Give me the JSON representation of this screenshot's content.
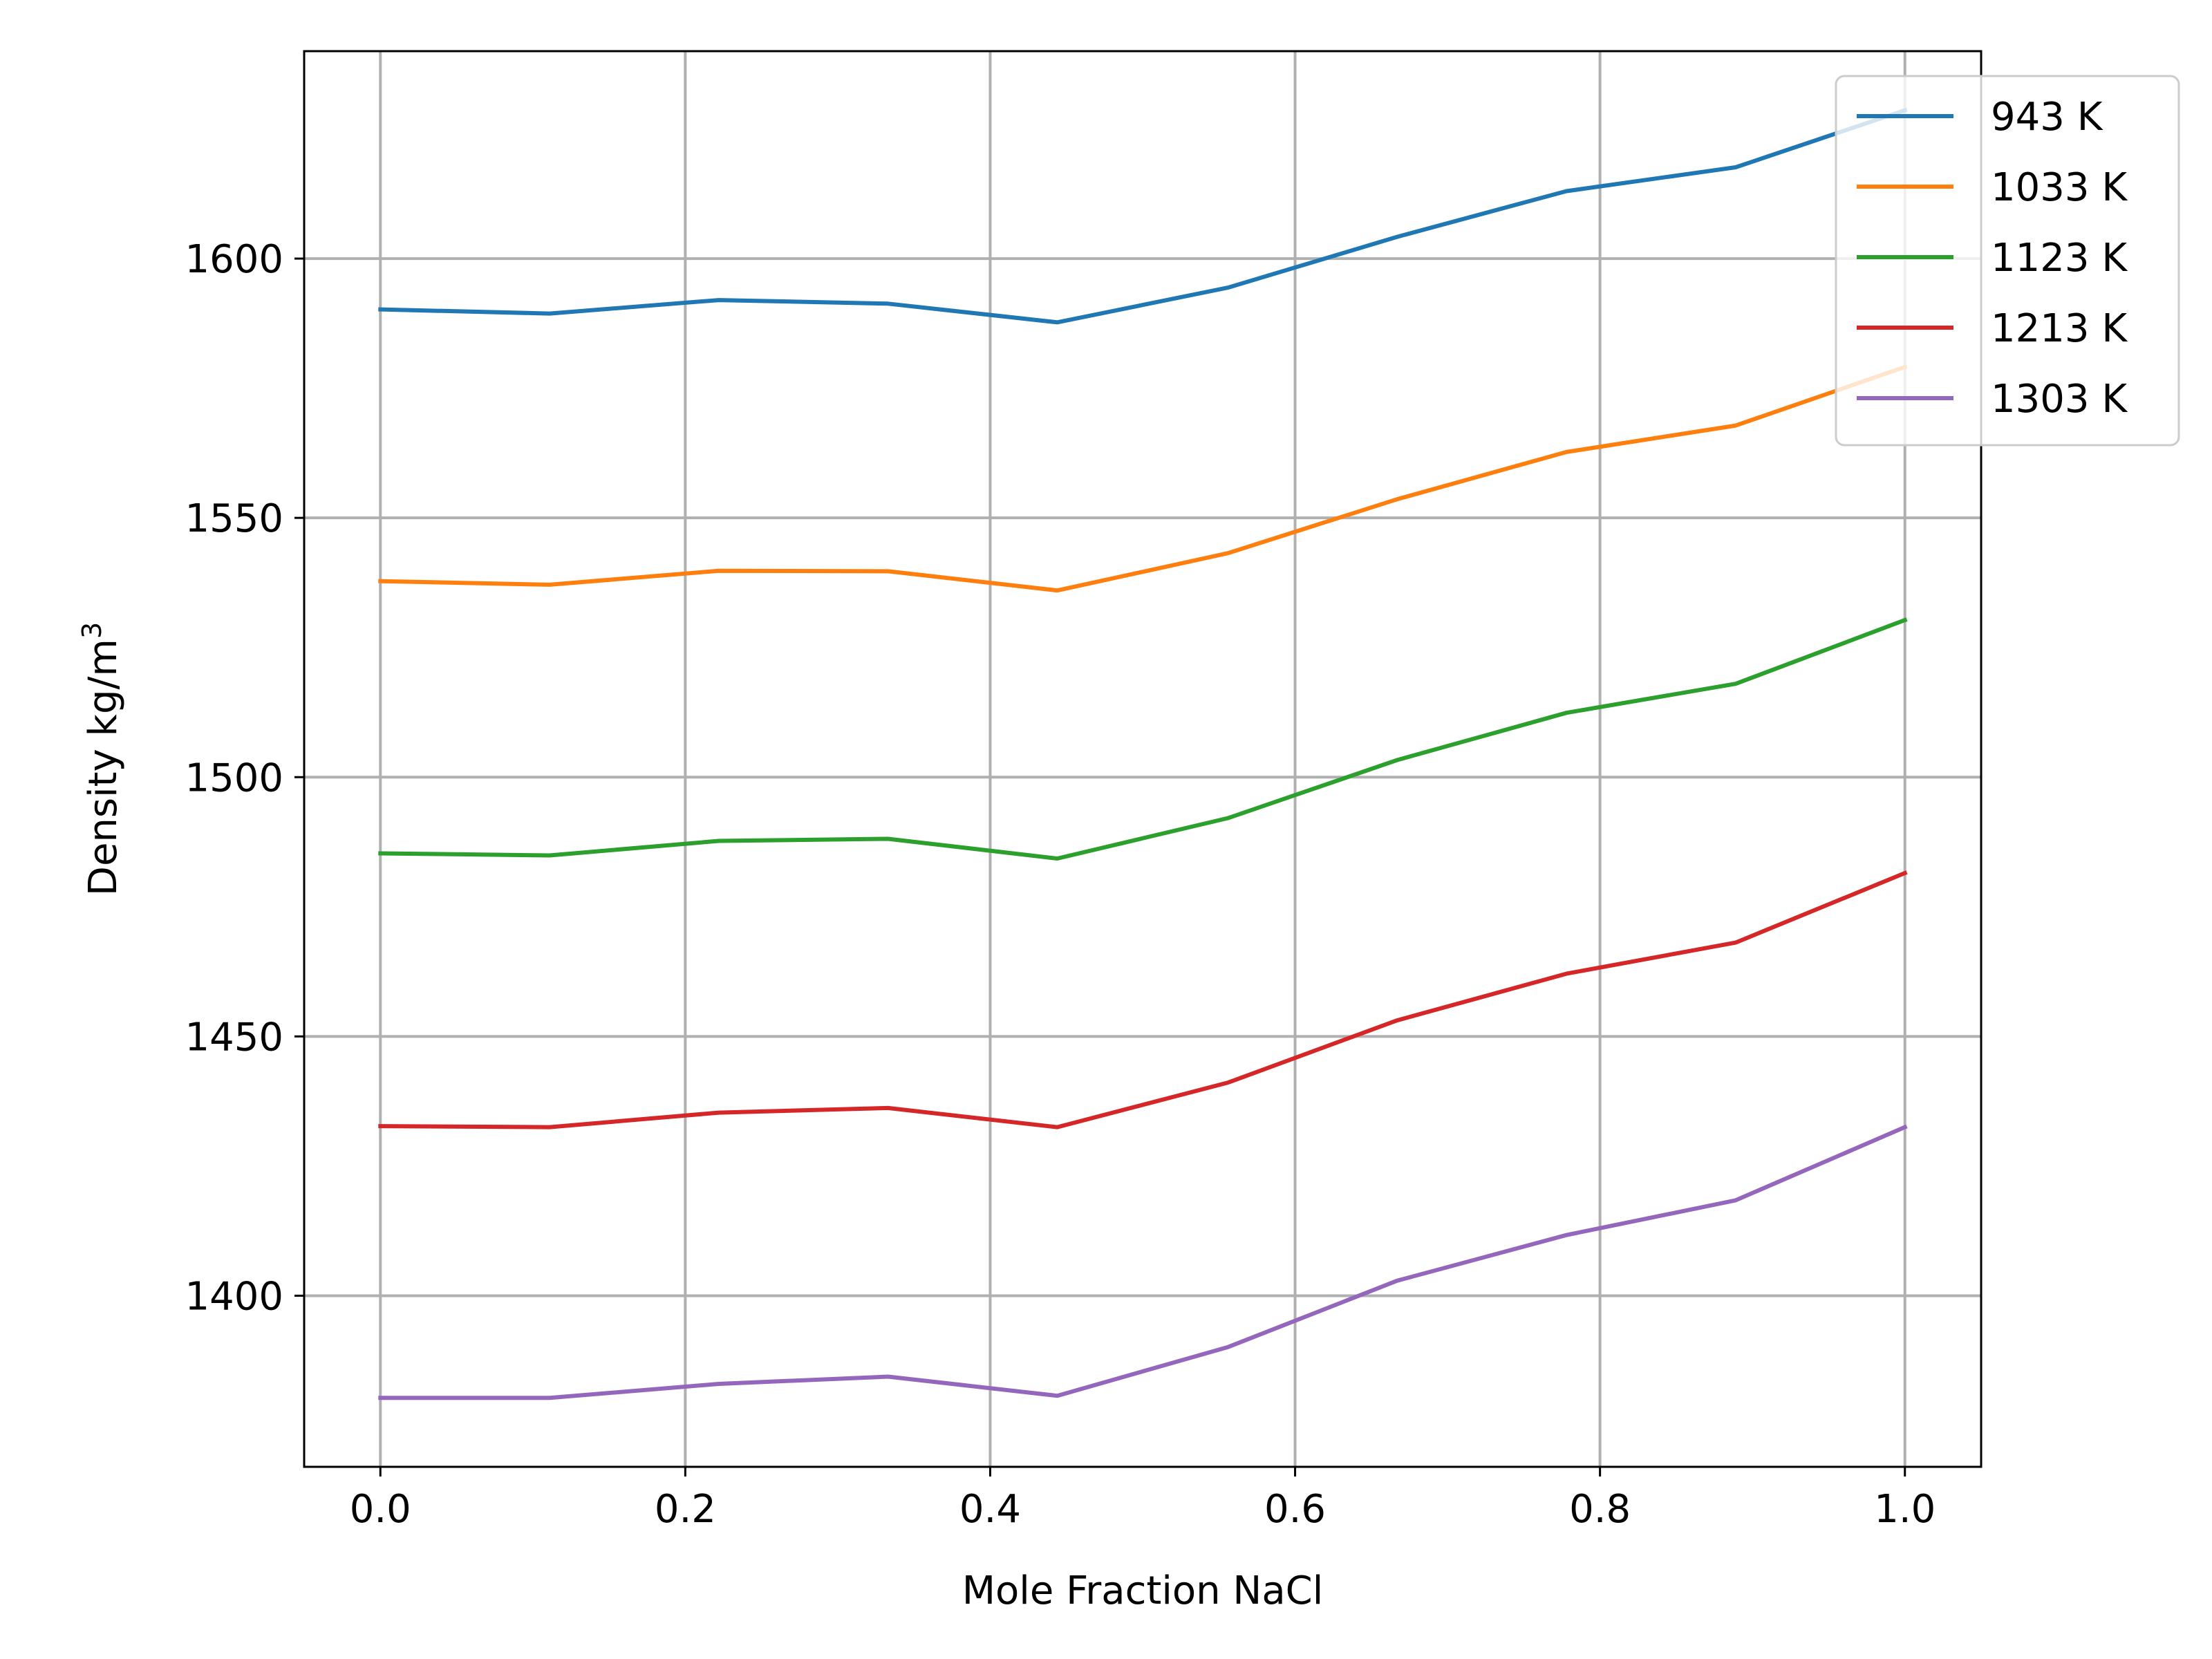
{
  "chart_data": {
    "type": "line",
    "title": "",
    "xlabel": "Mole Fraction NaCl",
    "ylabel": "Density kg/m",
    "ylabel_superscript": "3",
    "xlim": [
      -0.05,
      1.05
    ],
    "ylim": [
      1367,
      1640
    ],
    "xticks": [
      0.0,
      0.2,
      0.4,
      0.6,
      0.8,
      1.0
    ],
    "xtick_labels": [
      "0.0",
      "0.2",
      "0.4",
      "0.6",
      "0.8",
      "1.0"
    ],
    "yticks": [
      1400,
      1450,
      1500,
      1550,
      1600
    ],
    "ytick_labels": [
      "1400",
      "1450",
      "1500",
      "1550",
      "1600"
    ],
    "grid": true,
    "legend_position": "top-right",
    "x": [
      0.0,
      0.111,
      0.222,
      0.333,
      0.444,
      0.556,
      0.667,
      0.778,
      0.889,
      1.0
    ],
    "series": [
      {
        "name": "943 K",
        "color": "#1f77b4",
        "values": [
          1590.2,
          1589.4,
          1592.0,
          1591.3,
          1587.7,
          1594.4,
          1604.2,
          1613.0,
          1617.6,
          1628.6
        ]
      },
      {
        "name": "1033 K",
        "color": "#ff7f0e",
        "values": [
          1537.8,
          1537.1,
          1539.8,
          1539.7,
          1536.0,
          1543.2,
          1553.6,
          1562.7,
          1567.8,
          1579.1
        ]
      },
      {
        "name": "1123 K",
        "color": "#2ca02c",
        "values": [
          1485.3,
          1484.9,
          1487.7,
          1488.1,
          1484.3,
          1492.1,
          1503.3,
          1512.4,
          1518.0,
          1530.3
        ]
      },
      {
        "name": "1213 K",
        "color": "#d62728",
        "values": [
          1432.7,
          1432.5,
          1435.3,
          1436.2,
          1432.5,
          1441.1,
          1453.1,
          1462.1,
          1468.1,
          1481.5
        ]
      },
      {
        "name": "1303 K",
        "color": "#9467bd",
        "values": [
          1380.3,
          1380.3,
          1383.0,
          1384.4,
          1380.7,
          1390.1,
          1402.9,
          1411.7,
          1418.4,
          1432.5
        ]
      }
    ]
  }
}
